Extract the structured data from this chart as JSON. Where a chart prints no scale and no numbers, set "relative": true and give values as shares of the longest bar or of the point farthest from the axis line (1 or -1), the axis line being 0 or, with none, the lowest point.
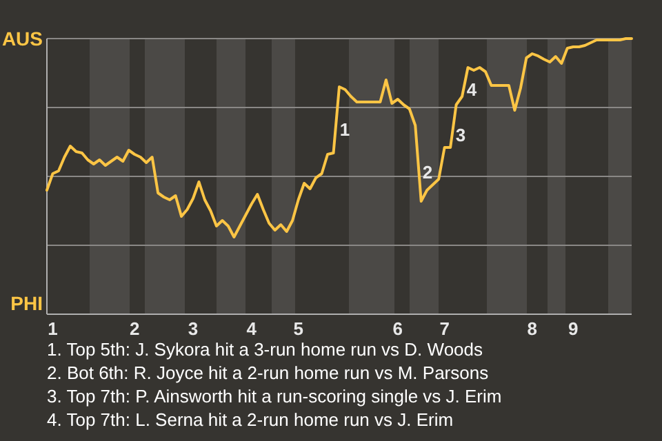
{
  "chart_data": {
    "type": "line",
    "relative": true,
    "categories": [
      null,
      "1",
      null,
      null,
      null,
      null,
      null,
      null,
      null,
      null,
      null,
      null,
      null,
      null,
      null,
      "2",
      null,
      null,
      null,
      null,
      null,
      null,
      null,
      null,
      null,
      "3",
      null,
      null,
      null,
      null,
      null,
      null,
      null,
      null,
      null,
      "4",
      null,
      null,
      null,
      null,
      null,
      null,
      null,
      "5",
      null,
      null,
      null,
      null,
      null,
      null,
      null,
      null,
      null,
      null,
      null,
      null,
      null,
      null,
      null,
      null,
      "6",
      null,
      null,
      null,
      null,
      null,
      null,
      null,
      "7",
      null,
      null,
      null,
      null,
      null,
      null,
      null,
      null,
      null,
      null,
      null,
      null,
      null,
      null,
      "8",
      null,
      null,
      null,
      null,
      null,
      null,
      "9",
      null,
      null,
      null,
      null,
      null,
      null,
      null,
      null,
      null,
      null
    ],
    "series": [
      {
        "color": "#fcc545",
        "values": [
          0.45,
          0.51,
          0.52,
          0.57,
          0.61,
          0.59,
          0.585,
          0.56,
          0.545,
          0.56,
          0.54,
          0.555,
          0.57,
          0.555,
          0.595,
          0.58,
          0.57,
          0.55,
          0.57,
          0.44,
          0.425,
          0.415,
          0.43,
          0.355,
          0.38,
          0.42,
          0.48,
          0.415,
          0.375,
          0.32,
          0.34,
          0.32,
          0.28,
          0.32,
          0.36,
          0.4,
          0.435,
          0.38,
          0.33,
          0.305,
          0.325,
          0.3,
          0.34,
          0.415,
          0.475,
          0.455,
          0.495,
          0.51,
          0.58,
          0.585,
          0.825,
          0.815,
          0.79,
          0.77,
          0.77,
          0.77,
          0.77,
          0.77,
          0.85,
          0.765,
          0.78,
          0.76,
          0.745,
          0.685,
          0.41,
          0.45,
          0.47,
          0.49,
          0.605,
          0.605,
          0.76,
          0.79,
          0.895,
          0.885,
          0.895,
          0.88,
          0.83,
          0.83,
          0.83,
          0.83,
          0.74,
          0.82,
          0.93,
          0.945,
          0.937,
          0.925,
          0.915,
          0.935,
          0.91,
          0.965,
          0.97,
          0.97,
          0.975,
          0.985,
          0.995,
          0.995,
          0.995,
          0.995,
          0.995,
          1,
          1
        ]
      }
    ],
    "grid": "y",
    "marker": "none",
    "line_style": "solid",
    "annotations": [
      "AUS",
      "PHI",
      "1",
      "2",
      "3",
      "4",
      "1. Top 5th: J. Sykora hit a 3-run home run vs D. Woods",
      "2. Bot 6th: R. Joyce hit a 2-run home run vs M. Parsons",
      "3. Top 7th: P. Ainsworth hit a run-scoring single vs J. Erim",
      "4. Top 7th: L. Serna hit a 2-run home run vs J. Erim"
    ]
  }
}
